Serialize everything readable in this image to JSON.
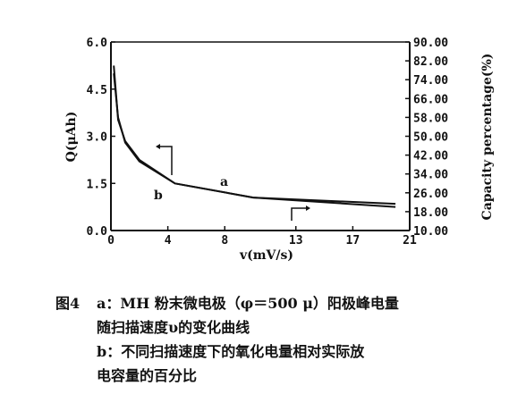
{
  "chart_data": {
    "type": "line",
    "xlabel": "v(mV/s)",
    "ylabel": "Q(μAh)",
    "y2label": "Capacity percentage(%)",
    "xlim": [
      0,
      21
    ],
    "ylim": [
      0,
      6
    ],
    "y2lim": [
      10,
      90
    ],
    "x_ticks": [
      "0",
      "4",
      "8",
      "13",
      "17",
      "21"
    ],
    "x_tick_values": [
      0,
      4,
      8,
      13,
      17,
      21
    ],
    "y_ticks": [
      "0.0",
      "1.5",
      "3.0",
      "4.5",
      "6.0"
    ],
    "y_tick_values": [
      0,
      1.5,
      3.0,
      4.5,
      6.0
    ],
    "y2_ticks": [
      "10.00",
      "18.00",
      "26.00",
      "34.00",
      "42.00",
      "50.00",
      "58.00",
      "66.00",
      "74.00",
      "82.00",
      "90.00"
    ],
    "y2_tick_values": [
      10,
      18,
      26,
      34,
      42,
      50,
      58,
      66,
      74,
      82,
      90
    ],
    "series": [
      {
        "name": "a",
        "axis": "left",
        "x": [
          0.2,
          0.5,
          1.0,
          2.0,
          4.5,
          10.0,
          20.0
        ],
        "y": [
          5.0,
          3.6,
          2.8,
          2.2,
          1.5,
          1.05,
          0.85
        ]
      },
      {
        "name": "b",
        "axis": "right",
        "x": [
          0.2,
          0.5,
          1.0,
          2.0,
          4.5,
          10.0,
          20.0
        ],
        "y": [
          80.0,
          57.0,
          48.0,
          40.0,
          30.0,
          24.0,
          20.0
        ]
      }
    ],
    "grid": false,
    "legend": "none"
  },
  "caption": {
    "figure_label": "图4",
    "lines": [
      "a：MH 粉末微电极（φ＝500 μ）阳极峰电量",
      "随扫描速度υ的变化曲线",
      "b：不同扫描速度下的氧化电量相对实际放",
      "电容量的百分比"
    ]
  }
}
